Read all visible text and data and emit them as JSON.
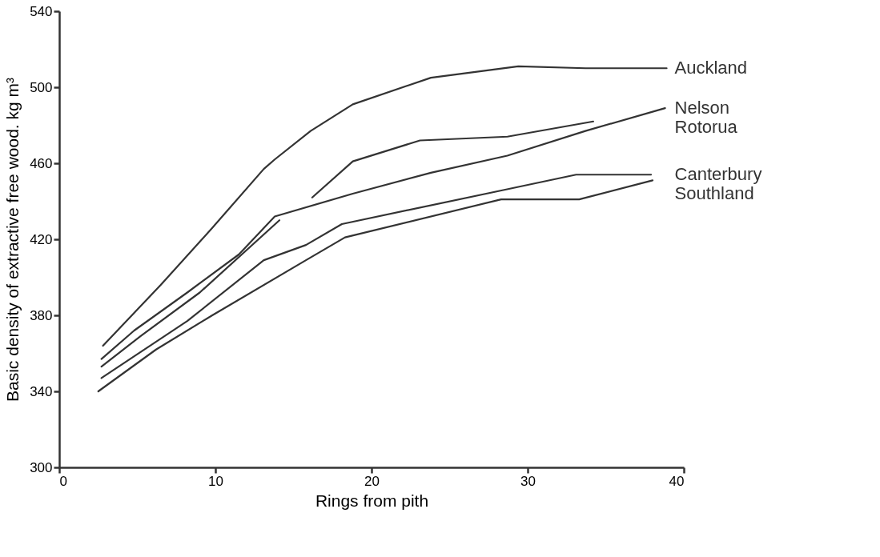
{
  "chart_data": {
    "type": "line",
    "xlabel": "Rings from pith",
    "ylabel": "Basic density of extractive free wood. kg m³",
    "xlim": [
      0,
      40
    ],
    "xticks": [
      0,
      10,
      20,
      30,
      40
    ],
    "ylim": [
      300,
      540
    ],
    "yticks": [
      300,
      340,
      380,
      420,
      460,
      500,
      540
    ],
    "grid": false,
    "legend": false,
    "line_style": "solid",
    "marker": "none",
    "series": [
      {
        "name": "Auckland",
        "color": "#333333",
        "x": [
          2.8,
          6.5,
          9.8,
          13.1,
          13.8,
          16.1,
          18.8,
          23.8,
          29.4,
          33.7,
          38.9
        ],
        "values": [
          364,
          396,
          426,
          457,
          462,
          477,
          491,
          505,
          511,
          510,
          510
        ]
      },
      {
        "name": "Nelson",
        "color": "#333333",
        "x": [
          2.7,
          4.8,
          8.2,
          11.5,
          13.8,
          18.8,
          23.8,
          28.7,
          33.7,
          38.8
        ],
        "values": [
          357,
          372,
          392,
          412,
          432,
          444,
          455,
          464,
          477,
          489
        ]
      },
      {
        "color": "#333333",
        "x": [
          2.7,
          5.2,
          9.0,
          14.1
        ],
        "values": [
          353,
          369,
          392,
          430
        ]
      },
      {
        "name": "Rotorua",
        "color": "#333333",
        "x": [
          16.2,
          18.8,
          23.1,
          28.7,
          34.2
        ],
        "values": [
          442,
          461,
          472,
          474,
          482
        ]
      },
      {
        "name": "Canterbury",
        "color": "#333333",
        "x": [
          2.7,
          8.2,
          13.1,
          15.8,
          18.1,
          28.5,
          33.1,
          37.9
        ],
        "values": [
          347,
          377,
          409,
          417,
          428,
          446,
          454,
          454
        ]
      },
      {
        "name": "Southland",
        "color": "#333333",
        "x": [
          2.5,
          6.2,
          9.8,
          15.8,
          18.3,
          28.3,
          33.3,
          38.0
        ],
        "values": [
          340,
          362,
          380,
          409,
          421,
          441,
          441,
          451
        ]
      }
    ]
  }
}
